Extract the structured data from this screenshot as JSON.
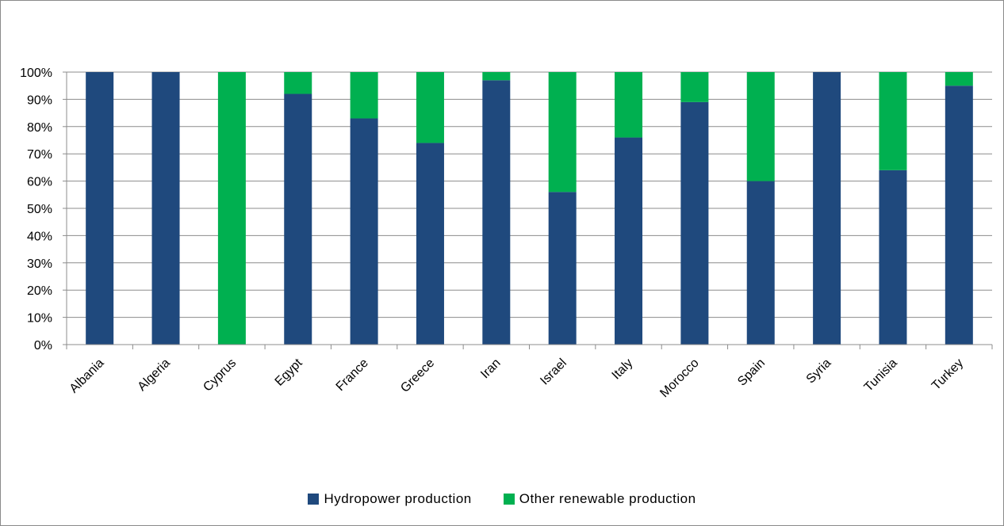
{
  "chart_data": {
    "type": "bar",
    "stacked": true,
    "percent_stacked": true,
    "categories": [
      "Albania",
      "Algeria",
      "Cyprus",
      "Egypt",
      "France",
      "Greece",
      "Iran",
      "Israel",
      "Italy",
      "Morocco",
      "Spain",
      "Syria",
      "Tunisia",
      "Turkey"
    ],
    "series": [
      {
        "name": "Hydropower production",
        "color": "#1F497D",
        "values": [
          100,
          100,
          0,
          92,
          83,
          74,
          97,
          56,
          76,
          89,
          60,
          100,
          64,
          95
        ]
      },
      {
        "name": "Other renewable production",
        "color": "#00B050",
        "values": [
          0,
          0,
          100,
          8,
          17,
          26,
          3,
          44,
          24,
          11,
          40,
          0,
          36,
          5
        ]
      }
    ],
    "y_ticks": [
      "0%",
      "10%",
      "20%",
      "30%",
      "40%",
      "50%",
      "60%",
      "70%",
      "80%",
      "90%",
      "100%"
    ],
    "ylim": [
      0,
      100
    ],
    "grid": true,
    "legend_position": "bottom",
    "title": "",
    "xlabel": "",
    "ylabel": ""
  }
}
